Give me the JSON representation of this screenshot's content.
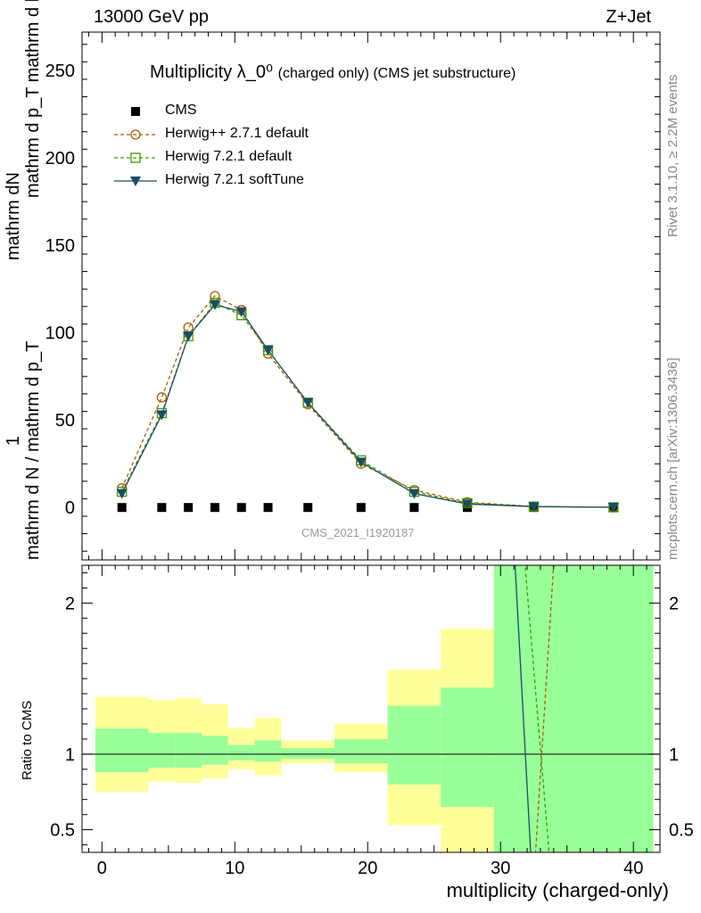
{
  "header": {
    "left": "13000 GeV pp",
    "right": "Z+Jet"
  },
  "side_labels": {
    "rivet": "Rivet 3.1.10, ≥ 2.2M events",
    "mcplots": "mcplots.cern.ch [arXiv:1306.3436]"
  },
  "watermark": "CMS_2021_I1920187",
  "colors": {
    "cms": "#000000",
    "herwigpp": "#b35900",
    "herwig721": "#3d9900",
    "softtune": "#1a4d66",
    "band_inner": "#99ff99",
    "band_outer": "#ffff99"
  },
  "chart_data": [
    {
      "type": "line",
      "title": "Multiplicity λ_0⁰",
      "title_small": "(charged only) (CMS jet substructure)",
      "ylabel_top": "mathrm dN",
      "ylabel_bottom": "mathrm d p_T mathrm d lambda",
      "ylabel_prefix": "1",
      "ylabel_denominator": "mathrm d N / mathrm d p_T",
      "xlim": [
        -1.5,
        42
      ],
      "ylim": [
        -30,
        272
      ],
      "yticks": [
        0,
        50,
        100,
        150,
        200,
        250
      ],
      "ytick_labels": [
        "0",
        "50",
        "100",
        "150",
        "200",
        "250"
      ],
      "legend": [
        "CMS",
        "Herwig++ 2.7.1 default",
        "Herwig 7.2.1 default",
        "Herwig 7.2.1 softTune"
      ],
      "series": [
        {
          "name": "CMS",
          "key": "cms",
          "x": [
            1.5,
            4.5,
            6.5,
            8.5,
            10.5,
            12.5,
            15.5,
            19.5,
            23.5,
            27.5,
            32.5,
            38.5
          ],
          "values": [
            0,
            0,
            0,
            0,
            0,
            0,
            0,
            0,
            0,
            0,
            0,
            0
          ]
        },
        {
          "name": "Herwig++ 2.7.1 default",
          "key": "herwigpp",
          "x": [
            1.5,
            4.5,
            6.5,
            8.5,
            10.5,
            12.5,
            15.5,
            19.5,
            23.5,
            27.5,
            32.5,
            38.5
          ],
          "values": [
            11,
            63,
            103,
            121,
            113,
            88,
            59,
            25,
            10,
            3,
            0.6,
            0.1
          ]
        },
        {
          "name": "Herwig 7.2.1 default",
          "key": "herwig721",
          "x": [
            1.5,
            4.5,
            6.5,
            8.5,
            10.5,
            12.5,
            15.5,
            19.5,
            23.5,
            27.5,
            32.5,
            38.5
          ],
          "values": [
            9,
            54,
            98,
            117,
            110,
            90,
            60,
            27,
            9,
            2.5,
            0.5,
            0.1
          ]
        },
        {
          "name": "Herwig 7.2.1 softTune",
          "key": "softtune",
          "x": [
            1.5,
            4.5,
            6.5,
            8.5,
            10.5,
            12.5,
            15.5,
            19.5,
            23.5,
            27.5,
            32.5,
            38.5
          ],
          "values": [
            8,
            53,
            98,
            116,
            112,
            90,
            60,
            26,
            8,
            2,
            0.5,
            0.1
          ]
        }
      ]
    },
    {
      "type": "line",
      "ylabel": "Ratio to CMS",
      "xlabel": "multiplicity (charged-only)",
      "xlim": [
        -1.5,
        42
      ],
      "ylim": [
        0.35,
        2.25
      ],
      "xticks": [
        0,
        10,
        20,
        30,
        40
      ],
      "xtick_labels": [
        "0",
        "10",
        "20",
        "30",
        "40"
      ],
      "yticks": [
        0.5,
        1,
        2
      ],
      "ytick_labels": [
        "0.5",
        "1",
        "2"
      ],
      "bands": [
        {
          "x0": -0.5,
          "x1": 3.5,
          "inner": [
            0.88,
            1.17
          ],
          "outer": [
            0.75,
            1.38
          ]
        },
        {
          "x0": 3.5,
          "x1": 5.5,
          "inner": [
            0.91,
            1.14
          ],
          "outer": [
            0.82,
            1.36
          ]
        },
        {
          "x0": 5.5,
          "x1": 7.5,
          "inner": [
            0.91,
            1.14
          ],
          "outer": [
            0.81,
            1.37
          ]
        },
        {
          "x0": 7.5,
          "x1": 9.5,
          "inner": [
            0.93,
            1.12
          ],
          "outer": [
            0.84,
            1.33
          ]
        },
        {
          "x0": 9.5,
          "x1": 11.5,
          "inner": [
            0.96,
            1.06
          ],
          "outer": [
            0.9,
            1.17
          ]
        },
        {
          "x0": 11.5,
          "x1": 13.5,
          "inner": [
            0.95,
            1.09
          ],
          "outer": [
            0.86,
            1.24
          ]
        },
        {
          "x0": 13.5,
          "x1": 17.5,
          "inner": [
            0.97,
            1.04
          ],
          "outer": [
            0.94,
            1.09
          ]
        },
        {
          "x0": 17.5,
          "x1": 21.5,
          "inner": [
            0.94,
            1.1
          ],
          "outer": [
            0.88,
            1.2
          ]
        },
        {
          "x0": 21.5,
          "x1": 25.5,
          "inner": [
            0.8,
            1.32
          ],
          "outer": [
            0.53,
            1.56
          ]
        },
        {
          "x0": 25.5,
          "x1": 29.5,
          "inner": [
            0.65,
            1.44
          ],
          "outer": [
            0.3,
            1.83
          ]
        },
        {
          "x0": 29.5,
          "x1": 41.5,
          "inner": [
            0.3,
            2.4
          ],
          "outer": [
            0.3,
            2.4
          ]
        }
      ],
      "series": [
        {
          "name": "Herwig++ 2.7.1 default",
          "key": "herwigpp",
          "x": [
            32.6,
            34.1
          ],
          "values": [
            0.3,
            2.4
          ],
          "dash": true
        },
        {
          "name": "Herwig 7.2.1 default",
          "key": "herwig721",
          "x": [
            31.7,
            33.7
          ],
          "values": [
            2.4,
            0.3
          ],
          "dash": true
        },
        {
          "name": "Herwig 7.2.1 softTune",
          "key": "softtune",
          "x": [
            31.0,
            32.3
          ],
          "values": [
            2.4,
            0.3
          ],
          "dash": false
        }
      ]
    }
  ]
}
